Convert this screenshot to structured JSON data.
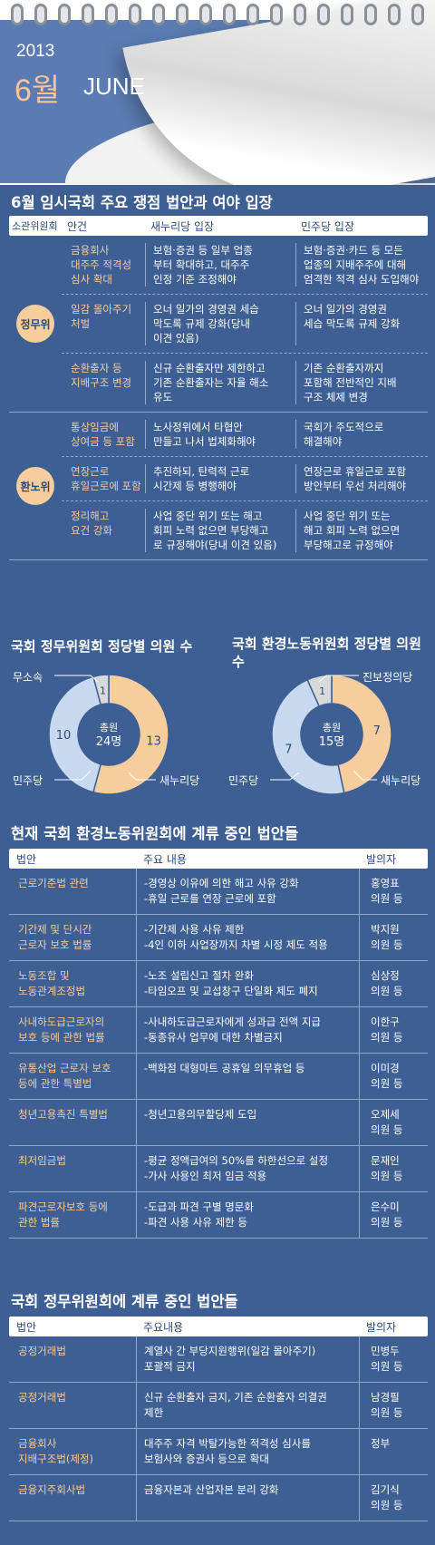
{
  "calendar": {
    "year": "2013",
    "month": "6월",
    "month_en": "JUNE"
  },
  "table1": {
    "title": "6월 임시국회 주요 쟁점 법안과 여야 입장",
    "headers": [
      "소관위원회",
      "안건",
      "새누리당 입장",
      "민주당 입장"
    ],
    "groups": [
      {
        "committee": "정무위",
        "rows": [
          {
            "item": [
              "금융회사",
              "대주주 적격성",
              "심사 확대"
            ],
            "saenuri": [
              "보험·증권 등 일부 업종",
              "부터 확대하고, 대주주",
              "인정 기준 조정해야"
            ],
            "minju": [
              "보험·증권·카드 등 모든",
              "업종의 지배주주에 대해",
              "엄격한 적격 심사 도입해야"
            ]
          },
          {
            "item": [
              "일감 몰아주기",
              "처벌"
            ],
            "saenuri": [
              "오너 일가의 경영권 세습",
              "막도록 규제 강화(당내",
              "이견 있음)"
            ],
            "minju": [
              "오너 일가의 경영권",
              "세습 막도록 규제 강화"
            ]
          },
          {
            "item": [
              "순환출자 등",
              "지배구조 변경"
            ],
            "saenuri": [
              "신규 순환출자만 제한하고",
              "기존 순환출자는 자율 해소",
              "유도"
            ],
            "minju": [
              "기존 순환출자까지",
              "포함해 전반적인 지배",
              "구조 체제 변경"
            ]
          }
        ]
      },
      {
        "committee": "환노위",
        "rows": [
          {
            "item": [
              "통상임금에",
              "상여금 등 포함"
            ],
            "saenuri": [
              "노사정위에서 타협안",
              "만들고 나서 법제화해야"
            ],
            "minju": [
              "국회가 주도적으로",
              "해결해야"
            ]
          },
          {
            "item": [
              "연장근로",
              "휴일근로에 포함"
            ],
            "saenuri": [
              "추진하되, 탄력적 근로",
              "시간제 등 병행해야"
            ],
            "minju": [
              "연장근로 휴일근로 포함",
              "방안부터 우선 처리해야"
            ]
          },
          {
            "item": [
              "정리해고",
              "요건 강화"
            ],
            "saenuri": [
              "사업 중단 위기 또는 해고",
              "회피 노력 없으면 부당해고",
              "로 규정해야(당내 이견 있음)"
            ],
            "minju": [
              "사업 중단 위기 또는",
              "해고 회피 노력 없으면",
              "부당해고로 규정해야"
            ]
          }
        ]
      }
    ]
  },
  "chart_data": [
    {
      "type": "pie",
      "title": "국회 정무위원회 정당별 의원 수",
      "center_label": [
        "총원",
        "24명"
      ],
      "categories": [
        "새누리당",
        "민주당",
        "무소속"
      ],
      "values": [
        13,
        10,
        1
      ],
      "colors": [
        "#f6cd9c",
        "#c7d9ef",
        "#d9d9d9"
      ]
    },
    {
      "type": "pie",
      "title": "국회 환경노동위원회 정당별 의원 수",
      "center_label": [
        "총원",
        "15명"
      ],
      "categories": [
        "새누리당",
        "민주당",
        "진보정의당"
      ],
      "values": [
        7,
        7,
        1
      ],
      "colors": [
        "#f6cd9c",
        "#c7d9ef",
        "#d9d9d9"
      ]
    }
  ],
  "table2": {
    "title": "현재 국회 환경노동위원회에 계류 중인 법안들",
    "headers": [
      "법안",
      "주요 내용",
      "발의자"
    ],
    "rows": [
      {
        "bill": [
          "근로기준법 관련"
        ],
        "content": [
          "-경영상 이유에 의한 해고 사유 강화",
          "-휴일 근로를 연장 근로에 포함"
        ],
        "sponsor": [
          "홍영표",
          "의원 등"
        ]
      },
      {
        "bill": [
          "기간제 및 단시간",
          "근로자 보호 법률"
        ],
        "content": [
          "-기간제 사용 사유 제한",
          "-4인 이하 사업장까지 차별 시정 제도 적용"
        ],
        "sponsor": [
          "박지원",
          "의원 등"
        ]
      },
      {
        "bill": [
          "노동조합 및",
          "노동관계조정법"
        ],
        "content": [
          "-노조 설립신고 절차 완화",
          "-타임오프 및 교섭창구 단일화 제도 폐지"
        ],
        "sponsor": [
          "심상정",
          "의원 등"
        ]
      },
      {
        "bill": [
          "사내하도급근로자의",
          "보호 등에 관한 법률"
        ],
        "content": [
          "-사내하도급근로자에게 성과급 전액 지급",
          "-동종유사 업무에 대한 차별금지"
        ],
        "sponsor": [
          "이한구",
          "의원 등"
        ]
      },
      {
        "bill": [
          "유통산업 근로자 보호",
          "등에 관한 특별법"
        ],
        "content": [
          "-백화점 대형마트 공휴일 의무휴업 등"
        ],
        "sponsor": [
          "이미경",
          "의원 등"
        ]
      },
      {
        "bill": [
          "청년고용촉진 특별법"
        ],
        "content": [
          "-청년고용의무할당제 도입"
        ],
        "sponsor": [
          "오제세",
          "의원 등"
        ]
      },
      {
        "bill": [
          "최저임금법"
        ],
        "content": [
          "-평균 정액급여의 50%를  하한선으로 설정",
          "-가사 사용인 최저 임금 적용"
        ],
        "sponsor": [
          "문재인",
          "의원 등"
        ]
      },
      {
        "bill": [
          "파견근로자보호 등에",
          "관한 법률"
        ],
        "content": [
          "-도급과 파견 구별 명문화",
          "-파견 사용 사유 제한 등"
        ],
        "sponsor": [
          "은수미",
          "의원 등"
        ]
      }
    ]
  },
  "table3": {
    "title": "국회 정무위원회에 계류 중인 법안들",
    "headers": [
      "법안",
      "주요내용",
      "발의자"
    ],
    "rows": [
      {
        "bill": [
          "공정거래법"
        ],
        "content": [
          "계열사 간 부당지원행위(일감 몰아주기)",
          "포괄적 금지"
        ],
        "sponsor": [
          "민병두",
          "의원 등"
        ]
      },
      {
        "bill": [
          "공정거래법"
        ],
        "content": [
          "신규 순환출자 금지, 기존 순환출자 의결권",
          "제한"
        ],
        "sponsor": [
          "남경필",
          "의원 등"
        ]
      },
      {
        "bill": [
          "금융회사",
          "지배구조법(제정)"
        ],
        "content": [
          "대주주 자격 박탈가능한 적격성 심사를",
          "보험사와 증권사 등으로 확대"
        ],
        "sponsor": [
          "정부"
        ]
      },
      {
        "bill": [
          "금융지주회사법"
        ],
        "content": [
          "금융자본과 산업자본 분리 강화"
        ],
        "sponsor": [
          "김기식",
          "의원 등"
        ]
      }
    ]
  }
}
